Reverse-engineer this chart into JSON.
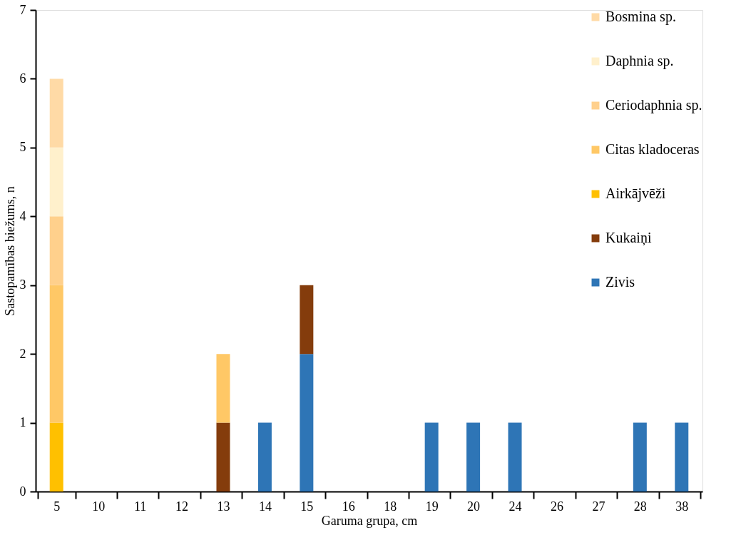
{
  "chart_data": {
    "type": "bar",
    "stacked": true,
    "xlabel": "Garuma grupa, cm",
    "ylabel": "Sastopamības biežums, n",
    "categories": [
      "5",
      "10",
      "11",
      "12",
      "13",
      "14",
      "15",
      "16",
      "18",
      "19",
      "20",
      "24",
      "26",
      "27",
      "28",
      "38"
    ],
    "series": [
      {
        "name": "Zivis",
        "color": "#2e75b6",
        "values": [
          null,
          null,
          null,
          null,
          null,
          1,
          2,
          null,
          null,
          1,
          1,
          1,
          null,
          null,
          1,
          1
        ]
      },
      {
        "name": "Kukaiņi",
        "color": "#843c0c",
        "values": [
          null,
          null,
          null,
          null,
          1,
          null,
          1,
          null,
          null,
          null,
          null,
          null,
          null,
          null,
          null,
          null
        ]
      },
      {
        "name": "Airkājvēži",
        "color": "#ffc000",
        "values": [
          1,
          null,
          null,
          null,
          null,
          null,
          null,
          null,
          null,
          null,
          null,
          null,
          null,
          null,
          null,
          null
        ]
      },
      {
        "name": "Citas kladoceras",
        "color": "#ffc866",
        "values": [
          2,
          null,
          null,
          null,
          1,
          null,
          null,
          null,
          null,
          null,
          null,
          null,
          null,
          null,
          null,
          null
        ]
      },
      {
        "name": "Ceriodaphnia sp.",
        "color": "#ffd08c",
        "values": [
          1,
          null,
          null,
          null,
          null,
          null,
          null,
          null,
          null,
          null,
          null,
          null,
          null,
          null,
          null,
          null
        ]
      },
      {
        "name": "Daphnia sp.",
        "color": "#fff0cc",
        "values": [
          1,
          null,
          null,
          null,
          null,
          null,
          null,
          null,
          null,
          null,
          null,
          null,
          null,
          null,
          null,
          null
        ]
      },
      {
        "name": "Bosmina sp.",
        "color": "#ffdaa6",
        "values": [
          1,
          null,
          null,
          null,
          null,
          null,
          null,
          null,
          null,
          null,
          null,
          null,
          null,
          null,
          null,
          null
        ]
      }
    ],
    "ylim": [
      0,
      7
    ],
    "yticks": [
      0,
      1,
      2,
      3,
      4,
      5,
      6,
      7
    ],
    "grid": false,
    "legend": "top right"
  }
}
